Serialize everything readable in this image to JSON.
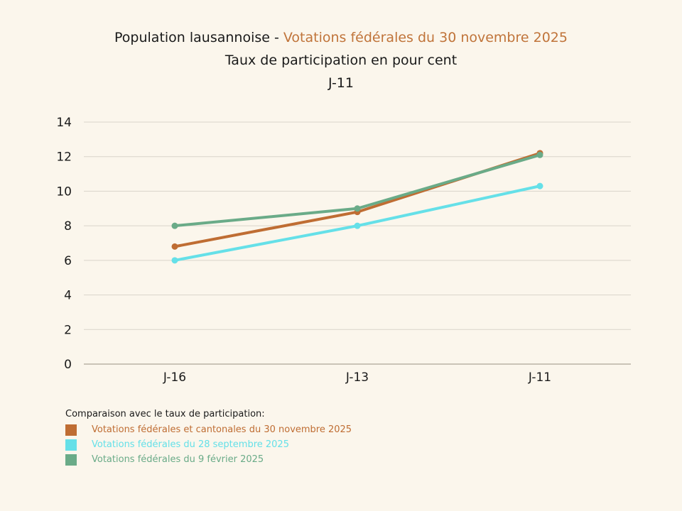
{
  "title": {
    "prefix": "Population lausannoise - ",
    "highlight": "Votations fédérales du 30 novembre 2025",
    "subtitle": "Taux de participation en pour cent",
    "day": "J-11"
  },
  "legend": {
    "heading": "Comparaison avec le taux de participation:"
  },
  "chart_data": {
    "type": "line",
    "title": "Population lausannoise - Votations fédérales du 30 novembre 2025",
    "subtitle": "Taux de participation en pour cent — J-11",
    "xlabel": "",
    "ylabel": "",
    "categories": [
      "J-16",
      "J-13",
      "J-11"
    ],
    "ylim": [
      0,
      14
    ],
    "yticks": [
      0,
      2,
      4,
      6,
      8,
      10,
      12,
      14
    ],
    "grid": true,
    "legend_position": "bottom-left",
    "series": [
      {
        "name": "Votations fédérales et cantonales du 30 novembre 2025",
        "color": "#bf6d33",
        "values": [
          6.8,
          8.8,
          12.2
        ]
      },
      {
        "name": "Votations fédérales du 28 septembre 2025",
        "color": "#65e0e8",
        "values": [
          6.0,
          8.0,
          10.3
        ]
      },
      {
        "name": "Votations fédérales du 9 février 2025",
        "color": "#6aab88",
        "values": [
          8.0,
          9.0,
          12.1
        ]
      }
    ]
  }
}
